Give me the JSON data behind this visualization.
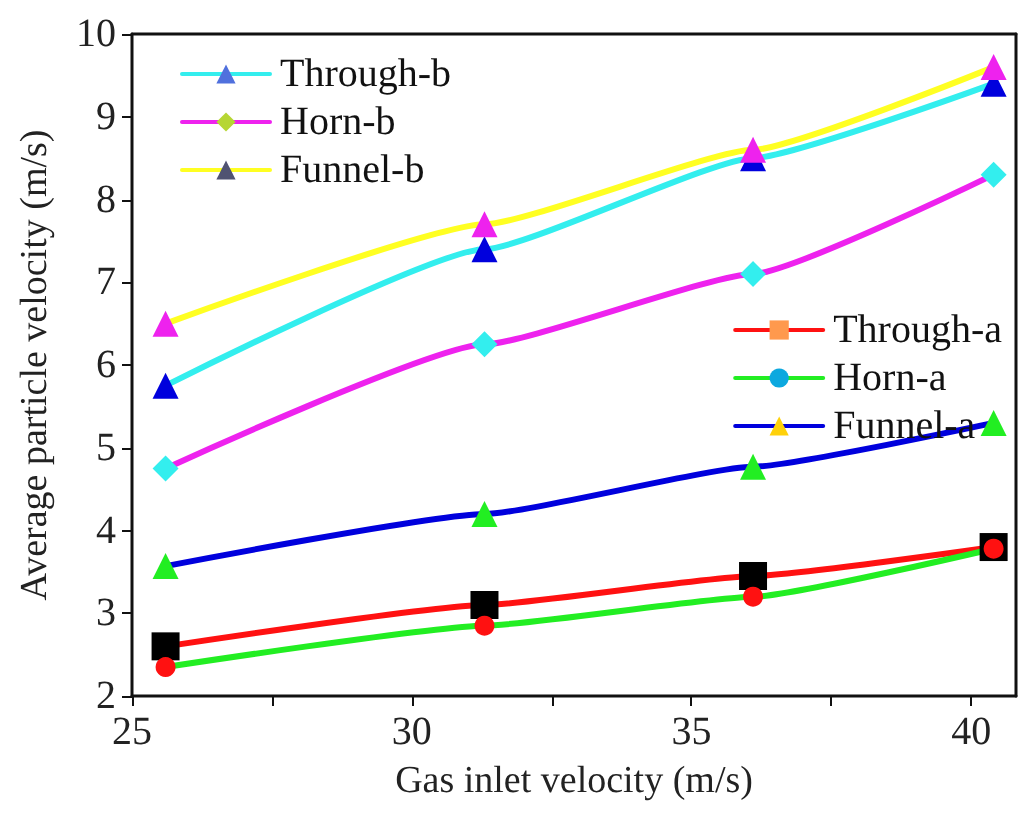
{
  "chart_data": {
    "type": "line",
    "xlabel": "Gas inlet velocity (m/s)",
    "ylabel": "Average particle velocity (m/s)",
    "x": [
      25.6,
      31.3,
      36.1,
      40.4
    ],
    "xlim": [
      25,
      40.8
    ],
    "xticks": [
      25,
      {
        "value": 27.5,
        "label": null
      },
      30,
      {
        "value": 32.5,
        "label": null
      },
      35,
      {
        "value": 37.5,
        "label": null
      },
      40
    ],
    "ylim": [
      2,
      10
    ],
    "yticks": [
      2,
      3,
      4,
      5,
      6,
      7,
      8,
      9,
      10
    ],
    "grid": false,
    "legend": [
      "top left",
      "right"
    ],
    "series": [
      {
        "name": "Through-b",
        "color": "#33eeee",
        "colors": [
          "#0000dd",
          "#0000dd",
          "#0000dd",
          "#0000dd"
        ],
        "marker": "triangle",
        "values": [
          5.75,
          7.4,
          8.5,
          9.4
        ]
      },
      {
        "name": "Horn-b",
        "color": "#ee22ee",
        "colors": [
          "#33eeee",
          "#33eeee",
          "#33eeee",
          "#33eeee"
        ],
        "marker": "diamond",
        "values": [
          4.75,
          6.25,
          7.1,
          8.3
        ]
      },
      {
        "name": "Funnel-b",
        "color": "#ffff22",
        "colors": [
          "#ee22ee",
          "#ee22ee",
          "#ee22ee",
          "#ee22ee"
        ],
        "marker": "triangle",
        "values": [
          6.5,
          7.7,
          8.6,
          9.6
        ]
      },
      {
        "name": "Through-a",
        "color": "#ff1111",
        "colors": [
          "#000000",
          "#000000",
          "#000000",
          "#000000"
        ],
        "marker": "square",
        "values": [
          2.6,
          3.1,
          3.45,
          3.8
        ]
      },
      {
        "name": "Horn-a",
        "color": "#22ee22",
        "colors": [
          "#ff1111",
          "#ff1111",
          "#ff1111",
          "#ff1111"
        ],
        "marker": "circle",
        "values": [
          2.35,
          2.85,
          3.2,
          3.78
        ]
      },
      {
        "name": "Funnel-a",
        "color": "#0000dd",
        "colors": [
          "#22ee22",
          "#22ee22",
          "#22ee22",
          "#22ee22"
        ],
        "marker": "triangle",
        "values": [
          3.57,
          4.2,
          4.77,
          5.3
        ]
      }
    ]
  }
}
